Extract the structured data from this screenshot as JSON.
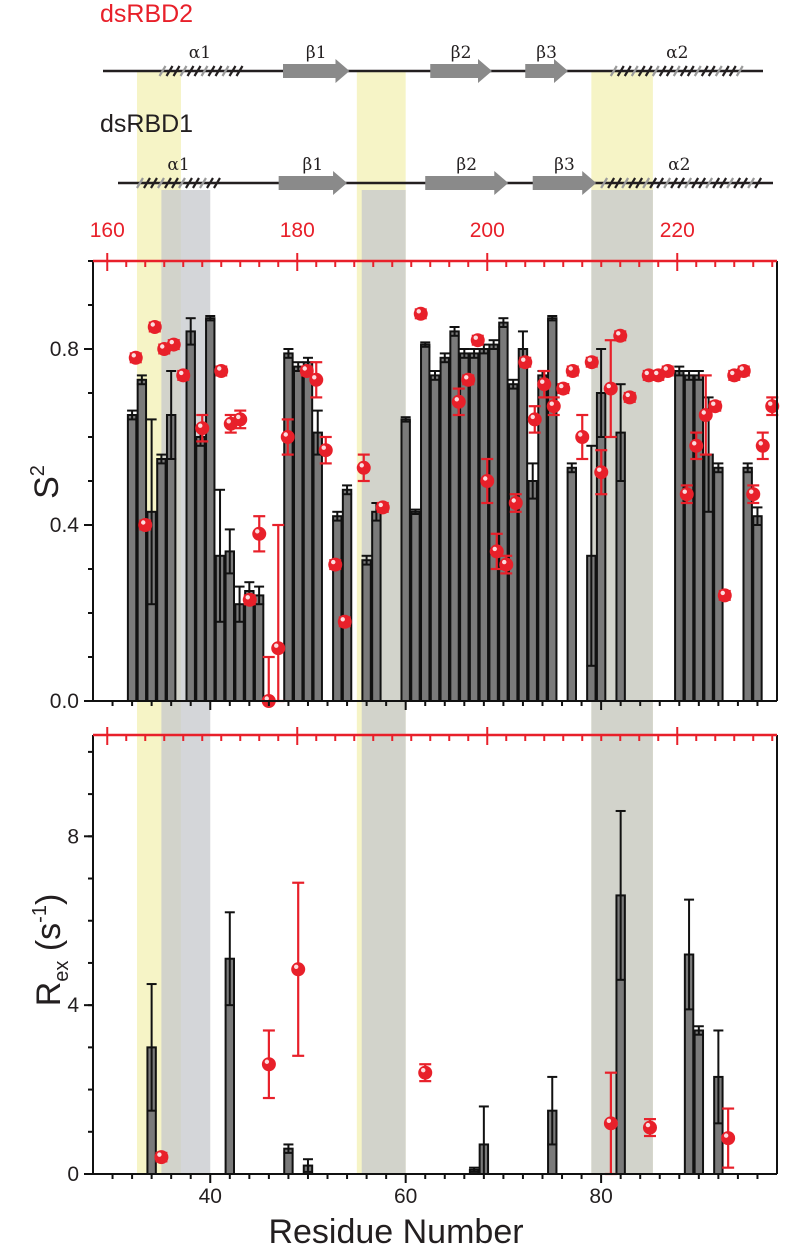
{
  "chart_data": {
    "type": "bar",
    "labels": {
      "domain_top": "dsRBD2",
      "domain_bottom": "dsRBD1",
      "ylabel_top_main": "S",
      "ylabel_top_sup": "2",
      "ylabel_bottom_main": "R",
      "ylabel_bottom_sub": "ex",
      "ylabel_bottom_unit": "(s",
      "ylabel_bottom_unit_sup": "-1",
      "ylabel_bottom_close": ")",
      "xlabel": "Residue Number"
    },
    "colors": {
      "dsRBD1_bar": "#7a7a7a",
      "dsRBD2_point": "#e8202a",
      "axis_red": "#e8202a",
      "highlight_yellow": "#f6f4c6",
      "highlight_gray": "#c6c8cc",
      "highlight_overlap": "#d8d6aa"
    },
    "axes": {
      "bottom_x": {
        "min": 28,
        "max": 98,
        "ticks": [
          40,
          60,
          80
        ],
        "minor_step": 2
      },
      "top_x": {
        "min": 158.5,
        "max": 230.5,
        "ticks": [
          160,
          180,
          200,
          220
        ],
        "minor_step": 2
      },
      "s2_y": {
        "min": 0,
        "max": 1.0,
        "ticks": [
          0.0,
          0.4,
          0.8
        ],
        "tick_labels": [
          "0.0",
          "0.4",
          "0.8"
        ]
      },
      "rex_y": {
        "min": 0,
        "max": 10.4,
        "ticks": [
          0,
          4,
          8
        ],
        "tick_labels": [
          "0",
          "4",
          "8"
        ]
      }
    },
    "secondary_structure": {
      "dsRBD2": [
        {
          "type": "helix",
          "label": "α1",
          "start": 165.5,
          "end": 174
        },
        {
          "type": "strand",
          "label": "β1",
          "start": 178.5,
          "end": 185.5
        },
        {
          "type": "strand",
          "label": "β2",
          "start": 194,
          "end": 200.5
        },
        {
          "type": "strand",
          "label": "β3",
          "start": 204,
          "end": 208.5
        },
        {
          "type": "helix",
          "label": "α2",
          "start": 213,
          "end": 227
        }
      ],
      "dsRBD1": [
        {
          "type": "helix",
          "label": "α1",
          "start": 32.5,
          "end": 41
        },
        {
          "type": "strand",
          "label": "β1",
          "start": 47,
          "end": 54
        },
        {
          "type": "strand",
          "label": "β2",
          "start": 62,
          "end": 70.5
        },
        {
          "type": "strand",
          "label": "β3",
          "start": 73,
          "end": 79.5
        },
        {
          "type": "helix",
          "label": "α2",
          "start": 80,
          "end": 96
        }
      ]
    },
    "highlight_regions": {
      "yellow": [
        [
          32.5,
          37
        ],
        [
          55,
          60
        ],
        [
          79,
          85.3
        ]
      ],
      "gray": [
        [
          35,
          40
        ],
        [
          55.5,
          60
        ],
        [
          79,
          85.3
        ]
      ]
    },
    "dsRBD1_S2": {
      "residue": [
        32,
        33,
        34,
        35,
        36,
        38,
        39,
        40,
        41,
        42,
        43,
        44,
        45,
        48,
        49,
        50,
        51,
        53,
        54,
        56,
        57,
        60,
        61,
        62,
        63,
        64,
        65,
        66,
        67,
        68,
        69,
        70,
        71,
        72,
        73,
        74,
        75,
        77,
        79,
        80,
        82,
        88,
        89,
        90,
        91,
        92,
        95,
        96
      ],
      "value": [
        0.65,
        0.73,
        0.43,
        0.55,
        0.65,
        0.84,
        0.6,
        0.87,
        0.33,
        0.34,
        0.22,
        0.25,
        0.24,
        0.79,
        0.76,
        0.77,
        0.61,
        0.42,
        0.48,
        0.32,
        0.43,
        0.64,
        0.43,
        0.81,
        0.74,
        0.78,
        0.84,
        0.79,
        0.79,
        0.8,
        0.81,
        0.86,
        0.72,
        0.8,
        0.5,
        0.74,
        0.87,
        0.53,
        0.33,
        0.7,
        0.61,
        0.75,
        0.74,
        0.74,
        0.56,
        0.53,
        0.53,
        0.42
      ],
      "error": [
        0.01,
        0.01,
        0.21,
        0.01,
        0.1,
        0.03,
        0.02,
        0.005,
        0.15,
        0.05,
        0.04,
        0.02,
        0.02,
        0.01,
        0.01,
        0.01,
        0.05,
        0.01,
        0.01,
        0.01,
        0.02,
        0.005,
        0.005,
        0.005,
        0.01,
        0.01,
        0.01,
        0.01,
        0.01,
        0.01,
        0.01,
        0.01,
        0.01,
        0.04,
        0.04,
        0.01,
        0.005,
        0.01,
        0.25,
        0.1,
        0.11,
        0.01,
        0.01,
        0.01,
        0.13,
        0.01,
        0.01,
        0.02
      ]
    },
    "dsRBD2_S2": {
      "residue": [
        163,
        164,
        165,
        166,
        167,
        168,
        170,
        172,
        173,
        174,
        175,
        176,
        177,
        178,
        179,
        181,
        182,
        183,
        184,
        185,
        187,
        189,
        193,
        197,
        198,
        199,
        200,
        201,
        202,
        203,
        204,
        205,
        206,
        207,
        208,
        209,
        210,
        211,
        212,
        213,
        214,
        215,
        217,
        218,
        219,
        221,
        222,
        223,
        224,
        225,
        226,
        227,
        228,
        229,
        230
      ],
      "value": [
        0.78,
        0.4,
        0.85,
        0.8,
        0.81,
        0.74,
        0.62,
        0.75,
        0.63,
        0.64,
        0.23,
        0.38,
        0.0,
        0.12,
        0.6,
        0.75,
        0.73,
        0.57,
        0.31,
        0.18,
        0.53,
        0.44,
        0.88,
        0.68,
        0.73,
        0.82,
        0.5,
        0.34,
        0.31,
        0.45,
        0.77,
        0.64,
        0.72,
        0.67,
        0.71,
        0.75,
        0.6,
        0.77,
        0.52,
        0.71,
        0.83,
        0.69,
        0.74,
        0.74,
        0.75,
        0.47,
        0.58,
        0.65,
        0.67,
        0.24,
        0.74,
        0.75,
        0.47,
        0.58,
        0.67
      ],
      "error": [
        0.01,
        0.01,
        0.01,
        0.01,
        0.01,
        0.01,
        0.03,
        0.01,
        0.02,
        0.02,
        0.01,
        0.04,
        0.1,
        0.28,
        0.04,
        0.01,
        0.04,
        0.03,
        0.01,
        0.01,
        0.03,
        0.01,
        0.01,
        0.03,
        0.01,
        0.01,
        0.05,
        0.04,
        0.02,
        0.02,
        0.01,
        0.03,
        0.03,
        0.02,
        0.01,
        0.01,
        0.05,
        0.01,
        0.05,
        0.11,
        0.01,
        0.01,
        0.01,
        0.01,
        0.01,
        0.02,
        0.03,
        0.09,
        0.01,
        0.01,
        0.01,
        0.01,
        0.02,
        0.03,
        0.02
      ]
    },
    "dsRBD1_Rex": {
      "residue": [
        34,
        42,
        48,
        50,
        67,
        68,
        75,
        82,
        89,
        90,
        92
      ],
      "value": [
        3.0,
        5.1,
        0.6,
        0.2,
        0.1,
        0.7,
        1.5,
        6.6,
        5.2,
        3.4,
        2.3
      ],
      "error": [
        1.5,
        1.1,
        0.1,
        0.15,
        0.05,
        0.9,
        0.8,
        2.0,
        1.3,
        0.1,
        1.1
      ]
    },
    "dsRBD2_Rex": {
      "residue": [
        35,
        46,
        49,
        62,
        81,
        85,
        93
      ],
      "value": [
        0.4,
        2.6,
        4.85,
        2.4,
        1.2,
        1.1,
        0.85
      ],
      "error": [
        0.1,
        0.8,
        2.05,
        0.2,
        1.2,
        0.2,
        0.7
      ]
    }
  }
}
